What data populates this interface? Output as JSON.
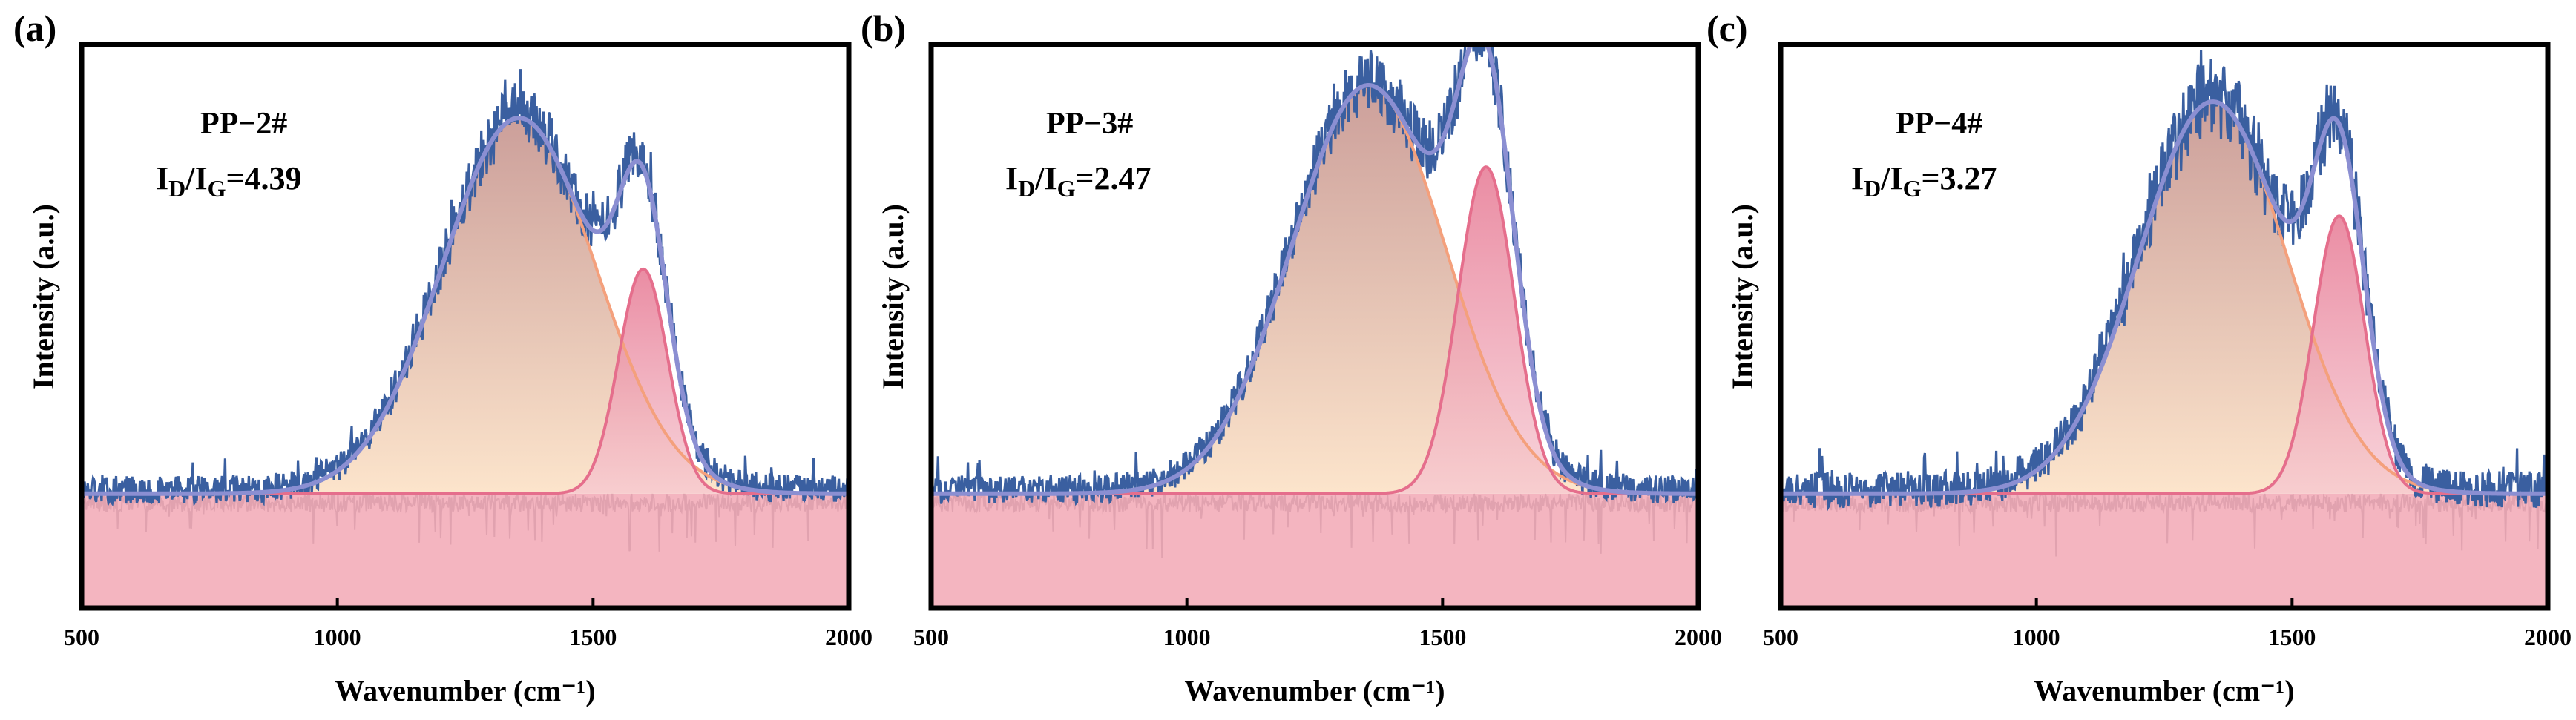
{
  "chart_data": [
    {
      "type": "line",
      "panel_label": "(a)",
      "sample": "PP−2#",
      "ratio": {
        "prefix_d": "I",
        "sub_d": "D",
        "slash": "/I",
        "sub_g": "G",
        "value": "=4.39"
      },
      "xlabel": "Wavenumber (cm⁻¹)",
      "ylabel": "Intensity (a.u.)",
      "xlim": [
        500,
        2000
      ],
      "xticks": [
        500,
        1000,
        1500,
        2000
      ],
      "xtick_labels": [
        "500",
        "1000",
        "1500",
        "2000"
      ],
      "ylim": [
        -0.28,
        1.1
      ],
      "baseline": 0,
      "noise": 0.035,
      "d_band": {
        "center": 1355,
        "sigma": 150,
        "amplitude": 0.92
      },
      "g_band": {
        "center": 1598,
        "sigma": 48,
        "amplitude": 0.55
      },
      "series": [
        {
          "name": "Raw spectrum",
          "color": "#3A5FA0"
        },
        {
          "name": "D band fit",
          "color": "#F4A07C"
        },
        {
          "name": "G band fit",
          "color": "#E56E8C"
        },
        {
          "name": "Cumulative fit",
          "color": "#8B8FD2"
        }
      ]
    },
    {
      "type": "line",
      "panel_label": "(b)",
      "sample": "PP−3#",
      "ratio": {
        "prefix_d": "I",
        "sub_d": "D",
        "slash": "/I",
        "sub_g": "G",
        "value": "=2.47"
      },
      "xlabel": "Wavenumber (cm⁻¹)",
      "ylabel": "Intensity (a.u.)",
      "xlim": [
        500,
        2000
      ],
      "xticks": [
        500,
        1000,
        1500,
        2000
      ],
      "xtick_labels": [
        "500",
        "1000",
        "1500",
        "2000"
      ],
      "ylim": [
        -0.28,
        1.1
      ],
      "baseline": 0,
      "noise": 0.035,
      "d_band": {
        "center": 1355,
        "sigma": 150,
        "amplitude": 1.0
      },
      "g_band": {
        "center": 1585,
        "sigma": 55,
        "amplitude": 0.8
      },
      "series": [
        {
          "name": "Raw spectrum",
          "color": "#3A5FA0"
        },
        {
          "name": "D band fit",
          "color": "#F4A07C"
        },
        {
          "name": "G band fit",
          "color": "#E56E8C"
        },
        {
          "name": "Cumulative fit",
          "color": "#8B8FD2"
        }
      ]
    },
    {
      "type": "line",
      "panel_label": "(c)",
      "sample": "PP−4#",
      "ratio": {
        "prefix_d": "I",
        "sub_d": "D",
        "slash": "/I",
        "sub_g": "G",
        "value": "=3.27"
      },
      "xlabel": "Wavenumber (cm⁻¹)",
      "ylabel": "Intensity (a.u.)",
      "xlim": [
        500,
        2000
      ],
      "xticks": [
        500,
        1000,
        1500,
        2000
      ],
      "xtick_labels": [
        "500",
        "1000",
        "1500",
        "2000"
      ],
      "ylim": [
        -0.28,
        1.1
      ],
      "baseline": 0,
      "noise": 0.045,
      "d_band": {
        "center": 1345,
        "sigma": 145,
        "amplitude": 0.96
      },
      "g_band": {
        "center": 1592,
        "sigma": 50,
        "amplitude": 0.68
      },
      "series": [
        {
          "name": "Raw spectrum",
          "color": "#3A5FA0"
        },
        {
          "name": "D band fit",
          "color": "#F4A07C"
        },
        {
          "name": "G band fit",
          "color": "#E56E8C"
        },
        {
          "name": "Cumulative fit",
          "color": "#8B8FD2"
        }
      ]
    }
  ]
}
